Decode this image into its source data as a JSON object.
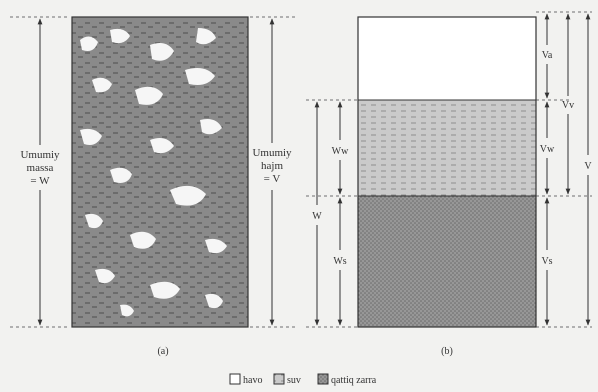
{
  "left_labels": {
    "total_mass": [
      "Umumiy",
      "massa",
      "= W"
    ],
    "total_volume": [
      "Umumiy",
      "hajm",
      "= V"
    ],
    "panel_a": "(a)"
  },
  "right_labels": {
    "V_a": "Va",
    "V_v": "Vv",
    "V_w": "Vw",
    "V": "V",
    "V_s": "Vs",
    "W_w": "Ww",
    "W": "W",
    "W_s": "Ws",
    "panel_b": "(b)"
  },
  "legend": {
    "air": "havo",
    "water": "suv",
    "solid": "qattiq zarra"
  },
  "colors": {
    "background": "#f2f2f0",
    "line": "#333333",
    "air": "#ffffff",
    "water": "#c8c8c8",
    "solid": "#8c8c8c",
    "soil_dark": "#6f6f6f"
  }
}
